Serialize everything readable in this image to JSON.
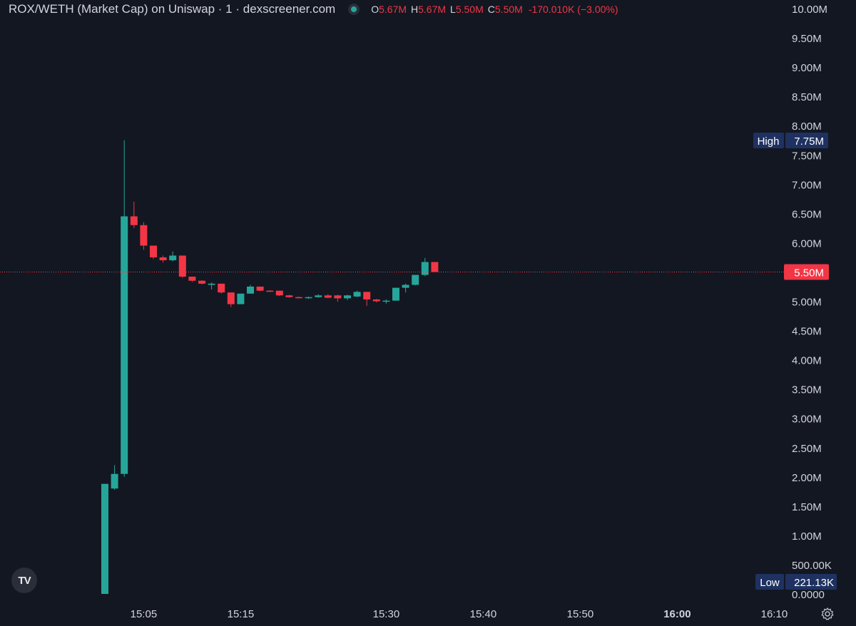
{
  "legend": {
    "title": "ROX/WETH (Market Cap) on Uniswap · 1 · dexscreener.com",
    "o_key": "O",
    "o_val": "5.67M",
    "h_key": "H",
    "h_val": "5.67M",
    "l_key": "L",
    "l_val": "5.50M",
    "c_key": "C",
    "c_val": "5.50M",
    "change": "-170.010K (−3.00%)"
  },
  "colors": {
    "up": "#26a69a",
    "down": "#f23645",
    "background": "#131722",
    "axis_text": "#d1d4dc",
    "label_bg": "#1e3160"
  },
  "icons": {
    "logo": "tradingview-logo-icon",
    "settings": "gear-icon"
  },
  "logo_text": "TV",
  "chart_data": {
    "type": "candlestick",
    "y_unit": "market cap",
    "ylim": [
      0,
      10000000
    ],
    "y_ticks": [
      "10.00M",
      "9.50M",
      "9.00M",
      "8.50M",
      "8.00M",
      "7.50M",
      "7.00M",
      "6.50M",
      "6.00M",
      "5.50M",
      "5.00M",
      "4.50M",
      "4.00M",
      "3.50M",
      "3.00M",
      "2.50M",
      "2.00M",
      "1.50M",
      "1.00M",
      "500.00K",
      "0.0000"
    ],
    "x_ticks": [
      "15:05",
      "15:15",
      "15:30",
      "15:40",
      "15:50",
      "16:00",
      "16:10"
    ],
    "x_ticks_bold": [
      "16:00"
    ],
    "x_start_time": "15:01",
    "interval_minutes": 1,
    "candles": [
      {
        "t": "15:01",
        "o": 0.0,
        "h": 1.88,
        "l": 0.0,
        "c": 1.88
      },
      {
        "t": "15:02",
        "o": 1.8,
        "h": 2.2,
        "l": 1.78,
        "c": 2.05
      },
      {
        "t": "15:03",
        "o": 2.05,
        "h": 7.75,
        "l": 2.0,
        "c": 6.45
      },
      {
        "t": "15:04",
        "o": 6.45,
        "h": 6.7,
        "l": 6.25,
        "c": 6.3
      },
      {
        "t": "15:05",
        "o": 6.3,
        "h": 6.35,
        "l": 5.88,
        "c": 5.95
      },
      {
        "t": "15:06",
        "o": 5.95,
        "h": 5.95,
        "l": 5.72,
        "c": 5.75
      },
      {
        "t": "15:07",
        "o": 5.75,
        "h": 5.78,
        "l": 5.66,
        "c": 5.7
      },
      {
        "t": "15:08",
        "o": 5.7,
        "h": 5.85,
        "l": 5.68,
        "c": 5.78
      },
      {
        "t": "15:09",
        "o": 5.78,
        "h": 5.78,
        "l": 5.4,
        "c": 5.42
      },
      {
        "t": "15:10",
        "o": 5.42,
        "h": 5.42,
        "l": 5.33,
        "c": 5.35
      },
      {
        "t": "15:11",
        "o": 5.35,
        "h": 5.36,
        "l": 5.29,
        "c": 5.3
      },
      {
        "t": "15:12",
        "o": 5.28,
        "h": 5.32,
        "l": 5.2,
        "c": 5.3
      },
      {
        "t": "15:13",
        "o": 5.3,
        "h": 5.3,
        "l": 5.13,
        "c": 5.15
      },
      {
        "t": "15:14",
        "o": 5.15,
        "h": 5.15,
        "l": 4.9,
        "c": 4.95
      },
      {
        "t": "15:15",
        "o": 4.95,
        "h": 5.13,
        "l": 4.95,
        "c": 5.13
      },
      {
        "t": "15:16",
        "o": 5.13,
        "h": 5.28,
        "l": 5.13,
        "c": 5.25
      },
      {
        "t": "15:17",
        "o": 5.25,
        "h": 5.25,
        "l": 5.17,
        "c": 5.18
      },
      {
        "t": "15:18",
        "o": 5.18,
        "h": 5.19,
        "l": 5.16,
        "c": 5.17
      },
      {
        "t": "15:19",
        "o": 5.18,
        "h": 5.18,
        "l": 5.09,
        "c": 5.1
      },
      {
        "t": "15:20",
        "o": 5.1,
        "h": 5.11,
        "l": 5.06,
        "c": 5.07
      },
      {
        "t": "15:21",
        "o": 5.07,
        "h": 5.08,
        "l": 5.05,
        "c": 5.06
      },
      {
        "t": "15:22",
        "o": 5.06,
        "h": 5.08,
        "l": 5.04,
        "c": 5.07
      },
      {
        "t": "15:23",
        "o": 5.07,
        "h": 5.12,
        "l": 5.06,
        "c": 5.1
      },
      {
        "t": "15:24",
        "o": 5.1,
        "h": 5.12,
        "l": 5.05,
        "c": 5.06
      },
      {
        "t": "15:25",
        "o": 5.1,
        "h": 5.11,
        "l": 4.99,
        "c": 5.05
      },
      {
        "t": "15:26",
        "o": 5.05,
        "h": 5.11,
        "l": 5.02,
        "c": 5.1
      },
      {
        "t": "15:27",
        "o": 5.08,
        "h": 5.18,
        "l": 5.07,
        "c": 5.16
      },
      {
        "t": "15:28",
        "o": 5.16,
        "h": 5.16,
        "l": 4.92,
        "c": 5.03
      },
      {
        "t": "15:29",
        "o": 5.03,
        "h": 5.04,
        "l": 4.98,
        "c": 5.0
      },
      {
        "t": "15:30",
        "o": 5.0,
        "h": 5.03,
        "l": 4.96,
        "c": 5.01
      },
      {
        "t": "15:31",
        "o": 5.01,
        "h": 5.23,
        "l": 5.01,
        "c": 5.23
      },
      {
        "t": "15:32",
        "o": 5.23,
        "h": 5.3,
        "l": 5.15,
        "c": 5.28
      },
      {
        "t": "15:33",
        "o": 5.28,
        "h": 5.45,
        "l": 5.27,
        "c": 5.45
      },
      {
        "t": "15:34",
        "o": 5.45,
        "h": 5.74,
        "l": 5.43,
        "c": 5.67
      },
      {
        "t": "15:35",
        "o": 5.67,
        "h": 5.67,
        "l": 5.5,
        "c": 5.5
      }
    ],
    "current_price_label": "5.50M",
    "current_price_value": 5.5,
    "high_label": "High",
    "high_value_label": "7.75M",
    "high_value": 7.75,
    "low_label": "Low",
    "low_value_label": "221.13K",
    "low_value": 0.22113
  }
}
